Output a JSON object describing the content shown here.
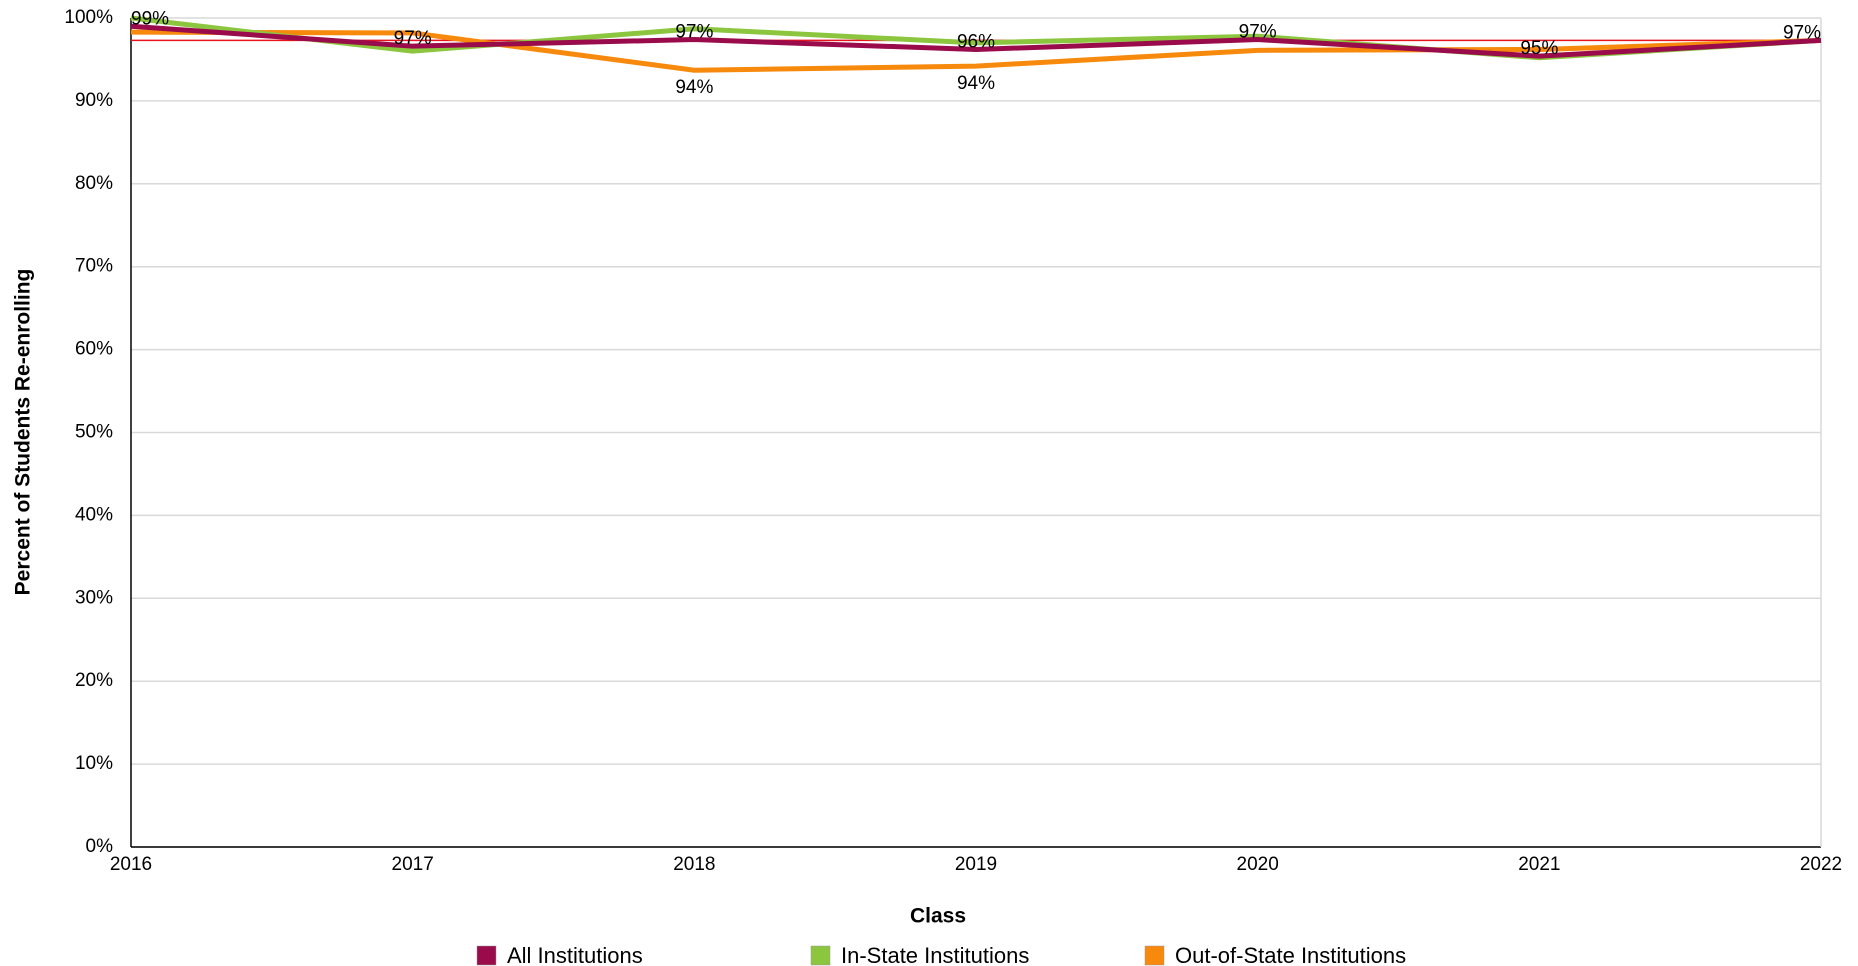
{
  "chart_data": {
    "type": "line",
    "x_label": "Class",
    "y_label": "Percent of Students Re-enrolling",
    "categories": [
      "2016",
      "2017",
      "2018",
      "2019",
      "2020",
      "2021",
      "2022"
    ],
    "series": [
      {
        "name": "All Institutions",
        "color": "#990b4b",
        "values": [
          99,
          96.6,
          97.4,
          96.2,
          97.4,
          95.4,
          97.3
        ],
        "value_labels": [
          "99%",
          "97%",
          "97%",
          "96%",
          "97%",
          "95%",
          "97%"
        ]
      },
      {
        "name": "In-State Institutions",
        "color": "#8cc63f",
        "values": [
          100,
          96,
          98.7,
          97,
          97.8,
          95.2,
          97.3
        ]
      },
      {
        "name": "Out-of-State Institutions",
        "color": "#f7890c",
        "values": [
          98.3,
          98.2,
          93.7,
          94.2,
          96.1,
          96.2,
          97.3
        ],
        "value_labels": [
          null,
          null,
          "94%",
          "94%",
          null,
          null,
          null
        ]
      }
    ],
    "reference_line": {
      "value": 97.3,
      "color": "#e8141c"
    },
    "ylim": [
      0,
      100
    ],
    "yticks": [
      {
        "value": 0,
        "label": "0%"
      },
      {
        "value": 10,
        "label": "10%"
      },
      {
        "value": 20,
        "label": "20%"
      },
      {
        "value": 30,
        "label": "30%"
      },
      {
        "value": 40,
        "label": "40%"
      },
      {
        "value": 50,
        "label": "50%"
      },
      {
        "value": 60,
        "label": "60%"
      },
      {
        "value": 70,
        "label": "70%"
      },
      {
        "value": 80,
        "label": "80%"
      },
      {
        "value": 90,
        "label": "90%"
      },
      {
        "value": 100,
        "label": "100%"
      }
    ],
    "grid": true
  }
}
